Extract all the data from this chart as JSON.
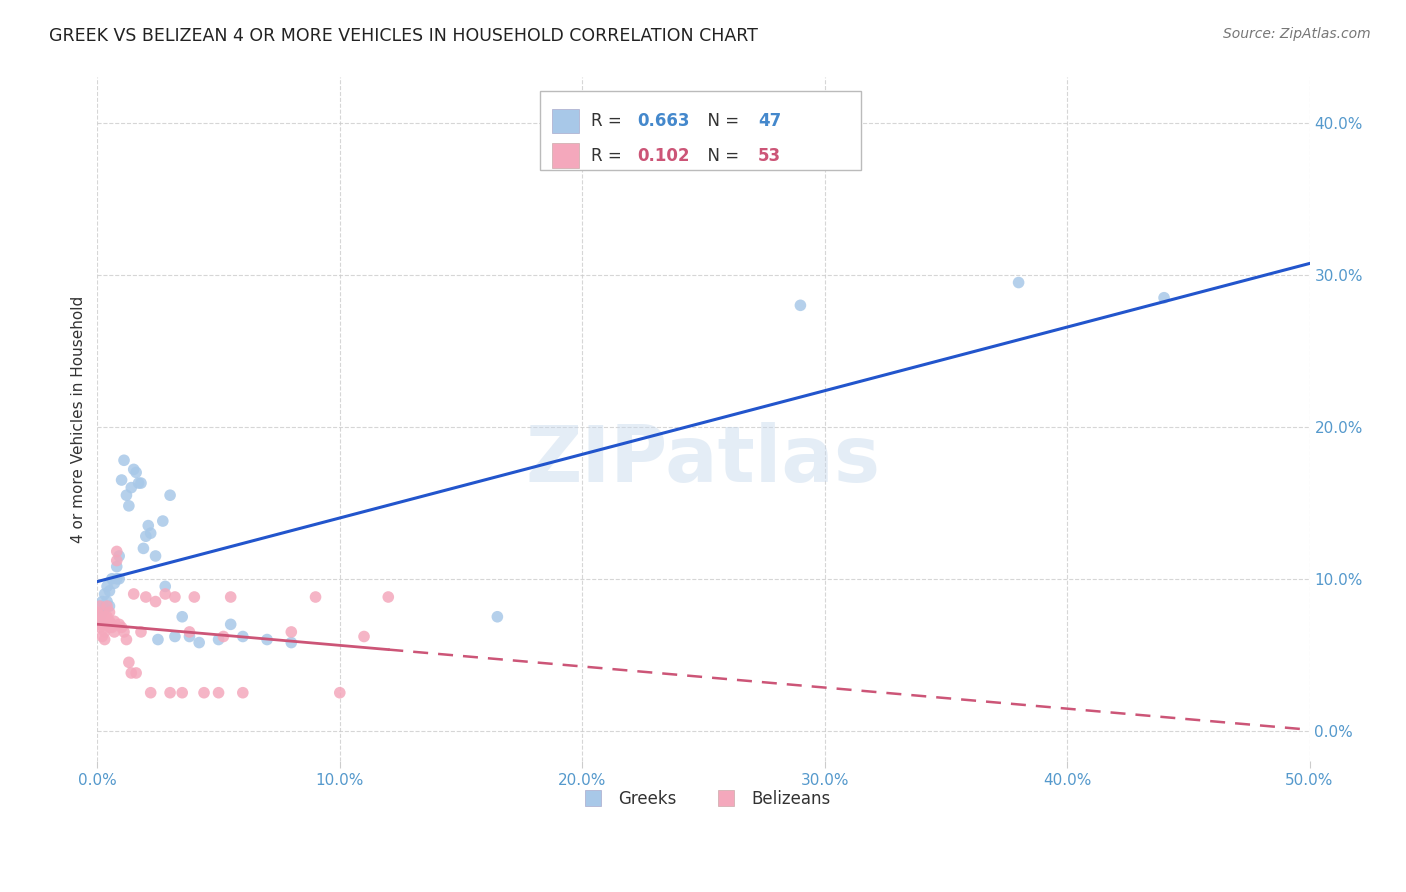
{
  "title": "GREEK VS BELIZEAN 4 OR MORE VEHICLES IN HOUSEHOLD CORRELATION CHART",
  "source": "Source: ZipAtlas.com",
  "ylabel": "4 or more Vehicles in Household",
  "xlim": [
    0.0,
    0.5
  ],
  "ylim": [
    -0.02,
    0.43
  ],
  "xticks": [
    0.0,
    0.1,
    0.2,
    0.3,
    0.4,
    0.5
  ],
  "yticks": [
    0.0,
    0.1,
    0.2,
    0.3,
    0.4
  ],
  "greek_R": 0.663,
  "greek_N": 47,
  "belizean_R": 0.102,
  "belizean_N": 53,
  "greek_color": "#a8c8e8",
  "belizean_color": "#f4a8bc",
  "greek_line_color": "#2255cc",
  "belizean_line_color": "#cc5577",
  "watermark": "ZIPatlas",
  "greek_x": [
    0.001,
    0.001,
    0.002,
    0.002,
    0.003,
    0.003,
    0.004,
    0.004,
    0.005,
    0.005,
    0.006,
    0.007,
    0.008,
    0.008,
    0.009,
    0.009,
    0.01,
    0.011,
    0.012,
    0.013,
    0.014,
    0.015,
    0.016,
    0.017,
    0.018,
    0.019,
    0.02,
    0.021,
    0.022,
    0.024,
    0.025,
    0.027,
    0.028,
    0.03,
    0.032,
    0.035,
    0.038,
    0.042,
    0.05,
    0.055,
    0.06,
    0.07,
    0.08,
    0.165,
    0.29,
    0.38,
    0.44
  ],
  "greek_y": [
    0.075,
    0.082,
    0.078,
    0.085,
    0.08,
    0.09,
    0.085,
    0.095,
    0.082,
    0.092,
    0.1,
    0.097,
    0.1,
    0.108,
    0.1,
    0.115,
    0.165,
    0.178,
    0.155,
    0.148,
    0.16,
    0.172,
    0.17,
    0.163,
    0.163,
    0.12,
    0.128,
    0.135,
    0.13,
    0.115,
    0.06,
    0.138,
    0.095,
    0.155,
    0.062,
    0.075,
    0.062,
    0.058,
    0.06,
    0.07,
    0.062,
    0.06,
    0.058,
    0.075,
    0.28,
    0.295,
    0.285
  ],
  "belizean_x": [
    0.0,
    0.0,
    0.001,
    0.001,
    0.001,
    0.001,
    0.002,
    0.002,
    0.002,
    0.003,
    0.003,
    0.003,
    0.003,
    0.004,
    0.004,
    0.004,
    0.005,
    0.005,
    0.005,
    0.006,
    0.006,
    0.007,
    0.007,
    0.008,
    0.008,
    0.009,
    0.01,
    0.011,
    0.012,
    0.013,
    0.014,
    0.015,
    0.016,
    0.018,
    0.02,
    0.022,
    0.024,
    0.028,
    0.03,
    0.032,
    0.035,
    0.038,
    0.04,
    0.044,
    0.05,
    0.052,
    0.055,
    0.06,
    0.08,
    0.09,
    0.1,
    0.11,
    0.12
  ],
  "belizean_y": [
    0.07,
    0.078,
    0.072,
    0.076,
    0.082,
    0.068,
    0.062,
    0.07,
    0.072,
    0.075,
    0.07,
    0.065,
    0.06,
    0.07,
    0.075,
    0.082,
    0.068,
    0.072,
    0.078,
    0.068,
    0.07,
    0.065,
    0.072,
    0.118,
    0.112,
    0.07,
    0.068,
    0.065,
    0.06,
    0.045,
    0.038,
    0.09,
    0.038,
    0.065,
    0.088,
    0.025,
    0.085,
    0.09,
    0.025,
    0.088,
    0.025,
    0.065,
    0.088,
    0.025,
    0.025,
    0.062,
    0.088,
    0.025,
    0.065,
    0.088,
    0.025,
    0.062,
    0.088
  ]
}
